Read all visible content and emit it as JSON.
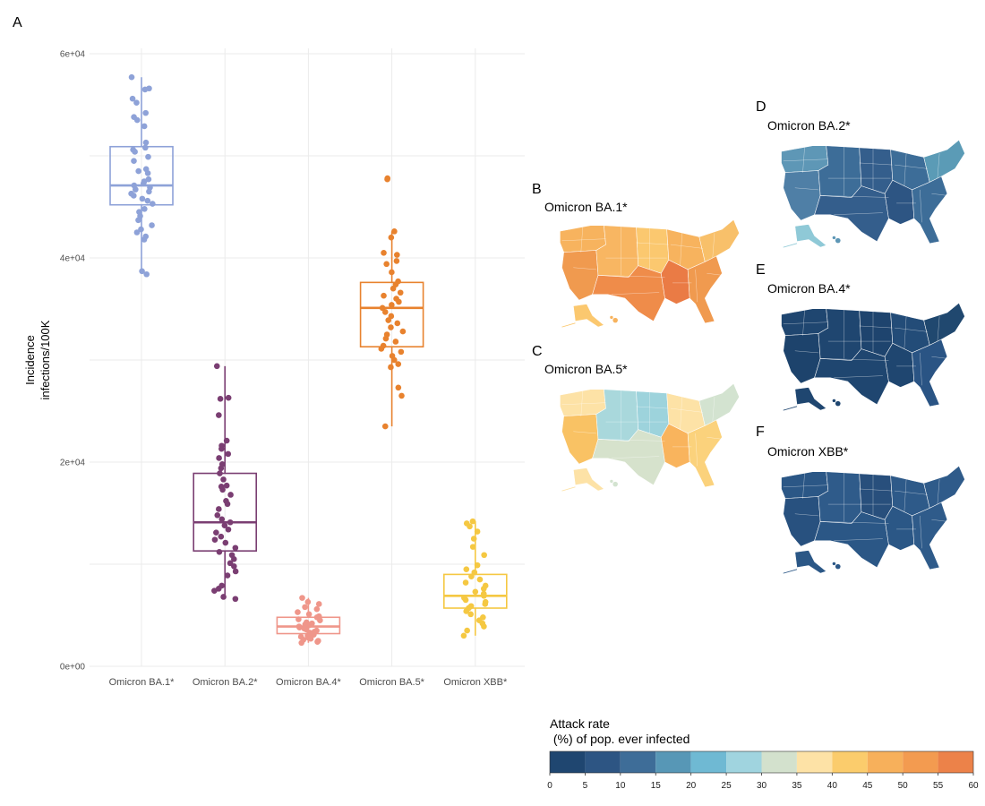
{
  "panels": {
    "A": "A",
    "B": "B",
    "C": "C",
    "D": "D",
    "E": "E",
    "F": "F"
  },
  "chart_data": [
    {
      "panel": "A",
      "type": "box",
      "ylabel": "Incidence\ninfections/100K",
      "xlabel": "",
      "ylim": [
        0,
        60000
      ],
      "y_ticks": [
        {
          "value": 0,
          "label": "0e+00"
        },
        {
          "value": 20000,
          "label": "2e+04"
        },
        {
          "value": 40000,
          "label": "4e+04"
        },
        {
          "value": 60000,
          "label": "6e+04"
        }
      ],
      "grid": true,
      "legend": "none",
      "categories": [
        "Omicron BA.1*",
        "Omicron BA.2*",
        "Omicron BA.4*",
        "Omicron BA.5*",
        "Omicron XBB*"
      ],
      "colors": [
        "#8ea2d8",
        "#7a3e72",
        "#ef968a",
        "#e8822e",
        "#f5c842"
      ],
      "boxes": [
        {
          "q1": 45200,
          "median": 47100,
          "q3": 50900,
          "whisker_low": 38500,
          "whisker_high": 57700
        },
        {
          "q1": 11300,
          "median": 14100,
          "q3": 18900,
          "whisker_low": 6600,
          "whisker_high": 29400
        },
        {
          "q1": 3200,
          "median": 3900,
          "q3": 4800,
          "whisker_low": 2300,
          "whisker_high": 6700
        },
        {
          "q1": 31300,
          "median": 35100,
          "q3": 37600,
          "whisker_low": 23500,
          "whisker_high": 42600
        },
        {
          "q1": 5700,
          "median": 6900,
          "q3": 9000,
          "whisker_low": 3000,
          "whisker_high": 14200
        }
      ],
      "points": [
        [
          57700,
          56600,
          56500,
          55600,
          55200,
          54200,
          53800,
          53500,
          52900,
          51300,
          50800,
          50600,
          50400,
          49900,
          49500,
          48700,
          48500,
          48300,
          47700,
          47500,
          47300,
          47100,
          46900,
          46700,
          46500,
          46300,
          46100,
          45800,
          45600,
          45300,
          44800,
          44500,
          44100,
          43700,
          43200,
          42800,
          42500,
          42100,
          41800,
          38700,
          38400
        ],
        [
          29400,
          26300,
          26200,
          24600,
          22100,
          21600,
          21300,
          20800,
          20400,
          19800,
          19400,
          18900,
          18300,
          17700,
          17600,
          17300,
          16800,
          16200,
          15900,
          15400,
          14800,
          14400,
          14100,
          13800,
          13400,
          13100,
          12700,
          12400,
          12100,
          11600,
          11200,
          10900,
          10500,
          10100,
          9800,
          9300,
          8900,
          7900,
          7600,
          7400,
          6800,
          6600
        ],
        [
          6700,
          6300,
          6100,
          5800,
          5600,
          5300,
          5100,
          4900,
          4800,
          4600,
          4500,
          4300,
          4200,
          4100,
          4000,
          3900,
          3800,
          3700,
          3600,
          3500,
          3400,
          3300,
          3200,
          3100,
          3000,
          2900,
          2800,
          2700,
          2600,
          2500,
          2400,
          2300
        ],
        [
          47800,
          47700,
          42600,
          42000,
          40500,
          40300,
          39700,
          39400,
          38600,
          37700,
          37400,
          37000,
          36600,
          36300,
          36000,
          35700,
          35400,
          35100,
          34700,
          34300,
          33900,
          33600,
          33200,
          32800,
          32500,
          32100,
          31800,
          31400,
          31100,
          30800,
          30400,
          30000,
          29600,
          29300,
          27300,
          26500,
          23500
        ],
        [
          14200,
          14000,
          13700,
          13200,
          12500,
          11700,
          10900,
          9900,
          9500,
          9200,
          8800,
          8500,
          8200,
          7900,
          7600,
          7300,
          7100,
          6900,
          6700,
          6500,
          6300,
          6100,
          5900,
          5700,
          5400,
          5100,
          4800,
          4500,
          4200,
          3900,
          3500,
          3000
        ]
      ]
    },
    {
      "panel": "B",
      "type": "choropleth",
      "title": "Omicron BA.1*",
      "regions": {
        "northwest": "#f7b35e",
        "west": "#f09a4f",
        "mountain": "#f8b662",
        "plains": "#fbc86f",
        "midwest": "#f7b35e",
        "south": "#ef8c4a",
        "southeast": "#f09a4f",
        "northeast": "#f8c06a",
        "deepsouth": "#ea7b45",
        "alaska": "#fbc86f",
        "hawaii": "#f7b35e"
      }
    },
    {
      "panel": "C",
      "type": "choropleth",
      "title": "Omicron BA.5*",
      "regions": {
        "northwest": "#fde2a6",
        "west": "#f9c264",
        "mountain": "#a9d8dc",
        "plains": "#9dd3dc",
        "midwest": "#fde2a6",
        "south": "#d6e2cc",
        "southeast": "#fbd27c",
        "northeast": "#d3e3d0",
        "deepsouth": "#f9b45d",
        "alaska": "#fde2a6",
        "hawaii": "#d3e3d0"
      }
    },
    {
      "panel": "D",
      "type": "choropleth",
      "title": "Omicron BA.2*",
      "regions": {
        "northwest": "#5e97b6",
        "west": "#4f7fa6",
        "mountain": "#3d6d98",
        "plains": "#345e8c",
        "midwest": "#3d6d98",
        "south": "#345e8c",
        "southeast": "#3d6d98",
        "northeast": "#5b9bb6",
        "deepsouth": "#2d5583",
        "alaska": "#8fc9d7",
        "hawaii": "#5e97b6"
      }
    },
    {
      "panel": "E",
      "type": "choropleth",
      "title": "Omicron BA.4*",
      "regions": {
        "northwest": "#1f4670",
        "west": "#1d436c",
        "mountain": "#1f4670",
        "plains": "#1e446e",
        "midwest": "#234c78",
        "south": "#1f4670",
        "southeast": "#2a5484",
        "northeast": "#20486f",
        "deepsouth": "#1f4670",
        "alaska": "#1f4670",
        "hawaii": "#1f4670"
      }
    },
    {
      "panel": "F",
      "type": "choropleth",
      "title": "Omicron XBB*",
      "regions": {
        "northwest": "#2b5786",
        "west": "#28517f",
        "mountain": "#2f5b8a",
        "plains": "#284f7c",
        "midwest": "#2e5a89",
        "south": "#2b5786",
        "southeast": "#2f5b8a",
        "northeast": "#2f5b8a",
        "deepsouth": "#2b5786",
        "alaska": "#2b5786",
        "hawaii": "#2b5786"
      }
    }
  ],
  "legend": {
    "title_line1": "Attack rate",
    "title_line2": " (%) of pop. ever infected",
    "ticks": [
      "0",
      "5",
      "10",
      "15",
      "20",
      "25",
      "30",
      "35",
      "40",
      "45",
      "50",
      "55",
      "60"
    ],
    "colors": [
      "#1f4670",
      "#2d5583",
      "#3e6d98",
      "#5797b6",
      "#6fb9d3",
      "#a0d4df",
      "#d3e1cd",
      "#fde2a6",
      "#fbcc6c",
      "#f7b05b",
      "#f39b50",
      "#ec8249"
    ]
  }
}
